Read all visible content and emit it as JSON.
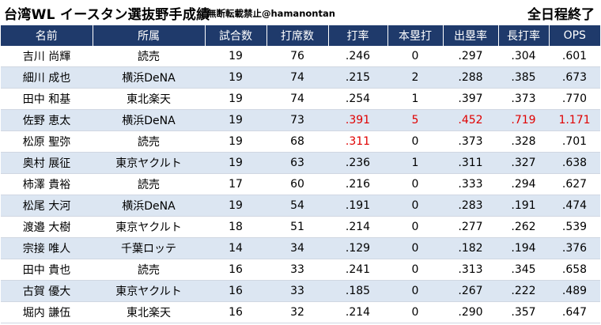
{
  "header": {
    "title": "台湾WL イースタン選抜野手成績",
    "notice": "無断転載禁止@hamanontan",
    "status": "全日程終了"
  },
  "columns": [
    "名前",
    "所属",
    "試合数",
    "打席数",
    "打率",
    "本塁打",
    "出塁率",
    "長打率",
    "OPS"
  ],
  "rows": [
    {
      "name": "吉川 尚輝",
      "team": "読売",
      "games": "19",
      "pa": "76",
      "avg": ".246",
      "hr": "0",
      "obp": ".297",
      "slg": ".304",
      "ops": ".601"
    },
    {
      "name": "細川 成也",
      "team": "横浜DeNA",
      "games": "19",
      "pa": "74",
      "avg": ".215",
      "hr": "2",
      "obp": ".288",
      "slg": ".385",
      "ops": ".673"
    },
    {
      "name": "田中 和基",
      "team": "東北楽天",
      "games": "19",
      "pa": "74",
      "avg": ".254",
      "hr": "1",
      "obp": ".397",
      "slg": ".373",
      "ops": ".770"
    },
    {
      "name": "佐野 恵太",
      "team": "横浜DeNA",
      "games": "19",
      "pa": "73",
      "avg": ".391",
      "hr": "5",
      "obp": ".452",
      "slg": ".719",
      "ops": "1.171"
    },
    {
      "name": "松原 聖弥",
      "team": "読売",
      "games": "19",
      "pa": "68",
      "avg": ".311",
      "hr": "0",
      "obp": ".373",
      "slg": ".328",
      "ops": ".701"
    },
    {
      "name": "奥村 展征",
      "team": "東京ヤクルト",
      "games": "19",
      "pa": "63",
      "avg": ".236",
      "hr": "1",
      "obp": ".311",
      "slg": ".327",
      "ops": ".638"
    },
    {
      "name": "柿澤 貴裕",
      "team": "読売",
      "games": "17",
      "pa": "60",
      "avg": ".216",
      "hr": "0",
      "obp": ".333",
      "slg": ".294",
      "ops": ".627"
    },
    {
      "name": "松尾 大河",
      "team": "横浜DeNA",
      "games": "19",
      "pa": "54",
      "avg": ".191",
      "hr": "0",
      "obp": ".283",
      "slg": ".191",
      "ops": ".474"
    },
    {
      "name": "渡邉 大樹",
      "team": "東京ヤクルト",
      "games": "18",
      "pa": "51",
      "avg": ".214",
      "hr": "0",
      "obp": ".277",
      "slg": ".262",
      "ops": ".539"
    },
    {
      "name": "宗接 唯人",
      "team": "千葉ロッテ",
      "games": "14",
      "pa": "34",
      "avg": ".129",
      "hr": "0",
      "obp": ".182",
      "slg": ".194",
      "ops": ".376"
    },
    {
      "name": "田中 貴也",
      "team": "読売",
      "games": "16",
      "pa": "33",
      "avg": ".241",
      "hr": "0",
      "obp": ".313",
      "slg": ".345",
      "ops": ".658"
    },
    {
      "name": "古賀 優大",
      "team": "東京ヤクルト",
      "games": "16",
      "pa": "33",
      "avg": ".185",
      "hr": "0",
      "obp": ".267",
      "slg": ".222",
      "ops": ".489"
    },
    {
      "name": "堀内 謙伍",
      "team": "東北楽天",
      "games": "16",
      "pa": "32",
      "avg": ".214",
      "hr": "0",
      "obp": ".290",
      "slg": ".357",
      "ops": ".647"
    }
  ],
  "highlights": {
    "佐野 恵太": [
      "avg",
      "hr",
      "obp",
      "slg",
      "ops"
    ],
    "松原 聖弥": [
      "avg"
    ]
  },
  "colors": {
    "header_bg": "#1f3a6b",
    "alt_row_bg": "#dce6f2",
    "highlight_text": "#e00000"
  }
}
